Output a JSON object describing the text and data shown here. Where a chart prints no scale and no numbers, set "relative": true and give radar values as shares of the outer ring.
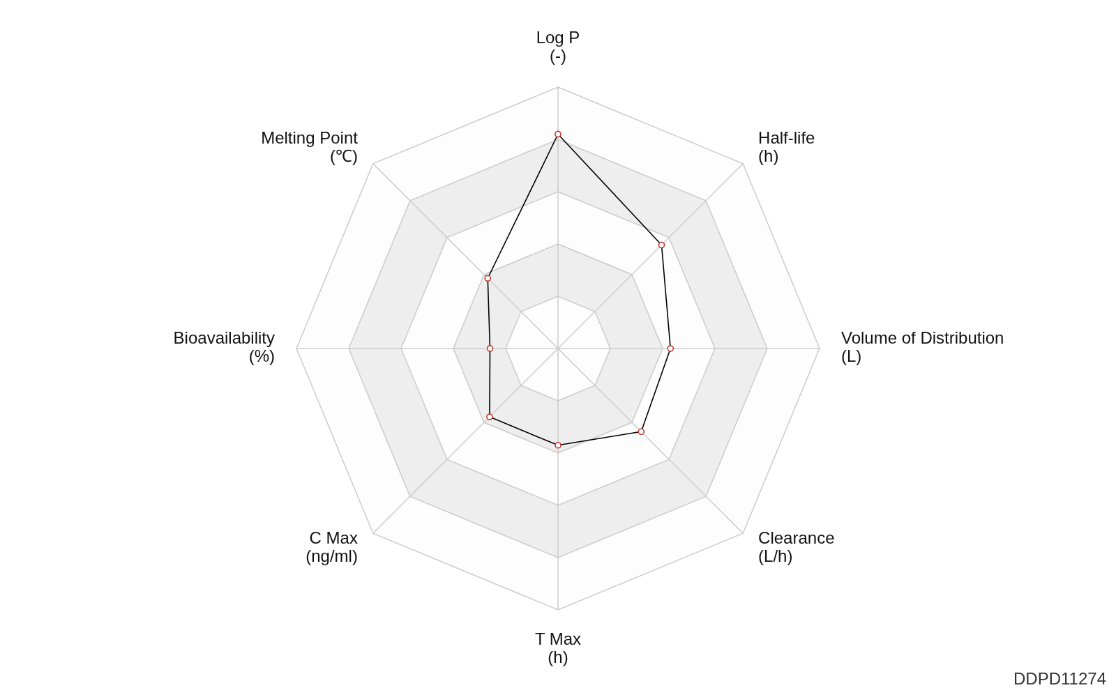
{
  "chart_data": {
    "type": "radar",
    "categories": [
      "Log P\n(-)",
      "Half-life\n(h)",
      "Volume of Distribution\n(L)",
      "Clearance\n(L/h)",
      "T Max\n(h)",
      "C Max\n(ng/ml)",
      "Bioavailability\n(%)",
      "Melting Point\n(℃)"
    ],
    "series": [
      {
        "color": "#000000",
        "values": [
          0.82,
          0.56,
          0.43,
          0.45,
          0.37,
          0.37,
          0.26,
          0.38
        ]
      }
    ],
    "relative": true,
    "grid": true,
    "marker": "circle",
    "line_style": "solid",
    "annotations": [
      "DDPD11274"
    ]
  }
}
